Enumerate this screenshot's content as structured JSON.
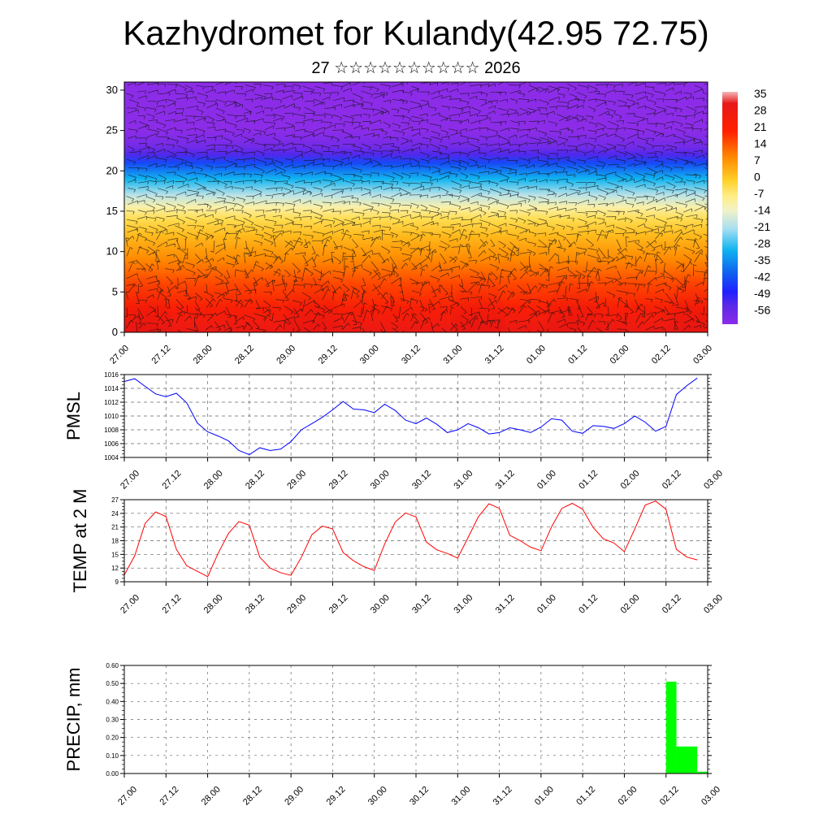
{
  "header": {
    "title": "Kazhydromet for Kulandy(42.95 72.75)",
    "subtitle": "27 ☆☆☆☆☆☆☆☆☆☆ 2026"
  },
  "time_labels": [
    "27.00",
    "27.12",
    "28.00",
    "28.12",
    "29.00",
    "29.12",
    "30.00",
    "30.12",
    "31.00",
    "31.12",
    "01.00",
    "01.12",
    "02.00",
    "02.12",
    "03.00"
  ],
  "chart_data": [
    {
      "type": "heatmap",
      "title": "",
      "ylim": [
        0,
        31
      ],
      "yticks": [
        0,
        5,
        10,
        15,
        20,
        25,
        30
      ],
      "colorbar": {
        "labels": [
          "35",
          "28",
          "21",
          "14",
          "7",
          "0",
          "-7",
          "-14",
          "-21",
          "-28",
          "-35",
          "-42",
          "-49",
          "-56"
        ],
        "stops": [
          {
            "value": 38,
            "color": "#f4b8b8"
          },
          {
            "value": 33,
            "color": "#e81818"
          },
          {
            "value": 21,
            "color": "#ff2000"
          },
          {
            "value": 10,
            "color": "#ff8800"
          },
          {
            "value": 0,
            "color": "#ffd028"
          },
          {
            "value": -7,
            "color": "#ffee88"
          },
          {
            "value": -13,
            "color": "#f2f2c8"
          },
          {
            "value": -21,
            "color": "#a8def2"
          },
          {
            "value": -30,
            "color": "#10b4f0"
          },
          {
            "value": -40,
            "color": "#1060f0"
          },
          {
            "value": -48,
            "color": "#2020ff"
          },
          {
            "value": -54,
            "color": "#5a2ae8"
          },
          {
            "value": -62,
            "color": "#8c2ce8"
          }
        ]
      },
      "temperature_profile": [
        {
          "level": 0,
          "value": 31
        },
        {
          "level": 3,
          "value": 24
        },
        {
          "level": 6,
          "value": 17
        },
        {
          "level": 9,
          "value": 10
        },
        {
          "level": 12,
          "value": 3
        },
        {
          "level": 14,
          "value": -3
        },
        {
          "level": 15.5,
          "value": -10
        },
        {
          "level": 17,
          "value": -19
        },
        {
          "level": 19,
          "value": -30
        },
        {
          "level": 21,
          "value": -43
        },
        {
          "level": 22,
          "value": -53
        },
        {
          "level": 23,
          "value": -58
        },
        {
          "level": 25,
          "value": -63
        },
        {
          "level": 31,
          "value": -65
        }
      ],
      "warm_pulses": [
        0.5,
        4.5,
        8.5,
        10.8,
        13.7
      ],
      "wind_barbs": "dense black wind barbs over entire field"
    },
    {
      "type": "line",
      "ylabel": "PMSL",
      "ylim": [
        1004,
        1016
      ],
      "yticks": [
        "1004",
        "1006",
        "1008",
        "1010",
        "1012",
        "1014",
        "1016"
      ],
      "series": [
        {
          "color": "#0000ff",
          "x": [
            0,
            0.25,
            0.5,
            0.75,
            1,
            1.25,
            1.5,
            1.75,
            2,
            2.25,
            2.5,
            2.75,
            3,
            3.25,
            3.5,
            3.75,
            4,
            4.25,
            4.5,
            4.75,
            5,
            5.25,
            5.5,
            5.75,
            6,
            6.25,
            6.5,
            6.75,
            7,
            7.25,
            7.5,
            7.75,
            8,
            8.25,
            8.5,
            8.75,
            9,
            9.25,
            9.5,
            9.75,
            10,
            10.25,
            10.5,
            10.75,
            11,
            11.25,
            11.5,
            11.75,
            12,
            12.25,
            12.5,
            12.75,
            13,
            13.25,
            13.5,
            13.75
          ],
          "values": [
            1015.0,
            1015.4,
            1014.3,
            1013.2,
            1012.8,
            1013.3,
            1011.9,
            1009.0,
            1007.7,
            1007.1,
            1006.4,
            1005.0,
            1004.4,
            1005.4,
            1005.0,
            1005.2,
            1006.3,
            1008.0,
            1008.9,
            1009.8,
            1010.9,
            1012.1,
            1011.0,
            1010.9,
            1010.5,
            1011.7,
            1010.8,
            1009.4,
            1008.9,
            1009.7,
            1008.8,
            1007.6,
            1008.0,
            1008.9,
            1008.3,
            1007.4,
            1007.6,
            1008.3,
            1008.0,
            1007.6,
            1008.4,
            1009.6,
            1009.4,
            1007.8,
            1007.5,
            1008.6,
            1008.5,
            1008.2,
            1008.9,
            1010.0,
            1009.1,
            1007.8,
            1008.5,
            1013.1,
            1014.4,
            1015.5
          ]
        }
      ]
    },
    {
      "type": "line",
      "ylabel": "TEMP at 2 M",
      "ylim": [
        9,
        27
      ],
      "yticks": [
        "9",
        "12",
        "15",
        "18",
        "21",
        "24",
        "27"
      ],
      "series": [
        {
          "color": "#ff0000",
          "x": [
            0,
            0.25,
            0.5,
            0.75,
            1,
            1.25,
            1.5,
            1.75,
            2,
            2.25,
            2.5,
            2.75,
            3,
            3.25,
            3.5,
            3.75,
            4,
            4.25,
            4.5,
            4.75,
            5,
            5.25,
            5.5,
            5.75,
            6,
            6.25,
            6.5,
            6.75,
            7,
            7.25,
            7.5,
            7.75,
            8,
            8.25,
            8.5,
            8.75,
            9,
            9.25,
            9.5,
            9.75,
            10,
            10.25,
            10.5,
            10.75,
            11,
            11.25,
            11.5,
            11.75,
            12,
            12.25,
            12.5,
            12.75,
            13,
            13.25,
            13.5,
            13.75
          ],
          "values": [
            10.5,
            14.7,
            21.8,
            24.3,
            23.3,
            16.1,
            12.5,
            11.3,
            10.1,
            15.2,
            19.6,
            22.2,
            21.4,
            14.4,
            12.0,
            11.0,
            10.4,
            14.4,
            19.3,
            21.2,
            20.6,
            15.4,
            13.6,
            12.3,
            11.5,
            17.3,
            22.1,
            24.1,
            23.2,
            17.7,
            16.0,
            15.2,
            14.2,
            18.7,
            23.3,
            26.1,
            25.1,
            19.2,
            18.0,
            16.6,
            15.8,
            21.0,
            25.1,
            26.2,
            24.9,
            20.9,
            18.4,
            17.5,
            15.6,
            20.6,
            25.8,
            26.7,
            24.9,
            16.1,
            14.4,
            13.8
          ]
        }
      ]
    },
    {
      "type": "bar",
      "ylabel": "PRECIP, mm",
      "ylim": [
        0,
        0.6
      ],
      "yticks": [
        "0.00",
        "0.10",
        "0.20",
        "0.30",
        "0.40",
        "0.50",
        "0.60"
      ],
      "bars": [
        {
          "x0": 13.0,
          "x1": 13.25,
          "value": 0.51,
          "color": "#00ff00"
        },
        {
          "x0": 13.25,
          "x1": 13.75,
          "value": 0.15,
          "color": "#00ff00"
        },
        {
          "x0": 13.75,
          "x1": 14.0,
          "value": 0.01,
          "color": "#00ff00"
        }
      ]
    }
  ]
}
